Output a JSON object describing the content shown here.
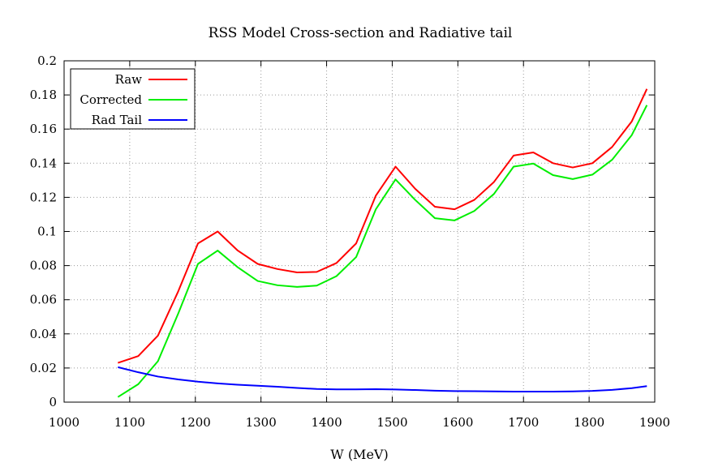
{
  "chart_data": {
    "type": "line",
    "title": "RSS Model Cross-section and Radiative tail",
    "xlabel": "W (MeV)",
    "ylabel": "",
    "xlim": [
      1000,
      1900
    ],
    "ylim": [
      0,
      0.2
    ],
    "grid": true,
    "legend_position": "top-left",
    "x_ticks": [
      "1000",
      "1100",
      "1200",
      "1300",
      "1400",
      "1500",
      "1600",
      "1700",
      "1800",
      "1900"
    ],
    "y_ticks": [
      "0",
      "0.02",
      "0.04",
      "0.06",
      "0.08",
      "0.1",
      "0.12",
      "0.14",
      "0.16",
      "0.18",
      "0.2"
    ],
    "x_tick_values": [
      1000,
      1100,
      1200,
      1300,
      1400,
      1500,
      1600,
      1700,
      1800,
      1900
    ],
    "y_tick_values": [
      0,
      0.02,
      0.04,
      0.06,
      0.08,
      0.1,
      0.12,
      0.14,
      0.16,
      0.18,
      0.2
    ],
    "series": [
      {
        "name": "Raw",
        "color": "#ff0000",
        "x": [
          1082,
          1113,
          1143,
          1174,
          1204,
          1234,
          1264,
          1295,
          1325,
          1355,
          1385,
          1415,
          1445,
          1475,
          1505,
          1535,
          1565,
          1595,
          1625,
          1655,
          1685,
          1715,
          1745,
          1775,
          1805,
          1835,
          1865,
          1888
        ],
        "y": [
          0.023,
          0.027,
          0.039,
          0.065,
          0.093,
          0.1,
          0.089,
          0.081,
          0.078,
          0.076,
          0.0763,
          0.0815,
          0.093,
          0.121,
          0.138,
          0.125,
          0.1145,
          0.113,
          0.1185,
          0.129,
          0.1445,
          0.1463,
          0.14,
          0.1375,
          0.14,
          0.1495,
          0.1645,
          0.1835
        ]
      },
      {
        "name": "Corrected",
        "color": "#00ee00",
        "x": [
          1082,
          1113,
          1143,
          1174,
          1204,
          1234,
          1264,
          1295,
          1325,
          1355,
          1385,
          1415,
          1445,
          1475,
          1505,
          1535,
          1565,
          1595,
          1625,
          1655,
          1685,
          1715,
          1745,
          1775,
          1805,
          1835,
          1865,
          1888
        ],
        "y": [
          0.003,
          0.0105,
          0.024,
          0.052,
          0.081,
          0.0888,
          0.0792,
          0.071,
          0.0685,
          0.0675,
          0.0683,
          0.0738,
          0.085,
          0.113,
          0.1305,
          0.1185,
          0.1078,
          0.1065,
          0.112,
          0.122,
          0.138,
          0.1398,
          0.133,
          0.1307,
          0.1333,
          0.142,
          0.1565,
          0.174
        ]
      },
      {
        "name": "Rad Tail",
        "color": "#0000ff",
        "x": [
          1082,
          1113,
          1143,
          1174,
          1204,
          1234,
          1264,
          1295,
          1325,
          1355,
          1385,
          1415,
          1445,
          1475,
          1505,
          1535,
          1565,
          1595,
          1625,
          1655,
          1685,
          1715,
          1745,
          1775,
          1805,
          1835,
          1865,
          1888
        ],
        "y": [
          0.0205,
          0.0175,
          0.015,
          0.0133,
          0.012,
          0.011,
          0.0102,
          0.0096,
          0.009,
          0.0083,
          0.0077,
          0.0075,
          0.0075,
          0.0076,
          0.0074,
          0.0071,
          0.0067,
          0.0065,
          0.0064,
          0.0063,
          0.0062,
          0.0062,
          0.0062,
          0.0063,
          0.0066,
          0.0072,
          0.0082,
          0.0094
        ]
      }
    ]
  }
}
